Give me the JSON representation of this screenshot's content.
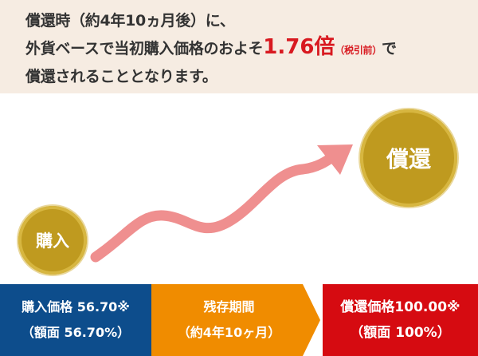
{
  "banner": {
    "line1": "償還時（約4年10ヵ月後）に、",
    "line2_prefix": "外貨ベースで当初購入価格のおよそ",
    "line2_value": "1.76倍",
    "line2_note": "（税引前）",
    "line2_suffix": "で",
    "line3": "償還されることとなります。"
  },
  "circles": {
    "buy_label": "購入",
    "redeem_label": "償還"
  },
  "boxes": {
    "buy_line1": "購入価格 56.70※",
    "buy_line2": "（額面 56.70%）",
    "period_line1": "残存期間",
    "period_line2": "（約4年10ヶ月）",
    "redeem_line1": "償還価格100.00※",
    "redeem_line2": "（額面 100%）"
  },
  "colors": {
    "banner_bg": "#f6ece2",
    "accent_red": "#d81920",
    "gold": "#bf9a1f",
    "arrow_pink": "#ef8f8f",
    "buy_blue": "#0d4d8c",
    "period_orange": "#f08c00",
    "redeem_red": "#d60b11"
  }
}
